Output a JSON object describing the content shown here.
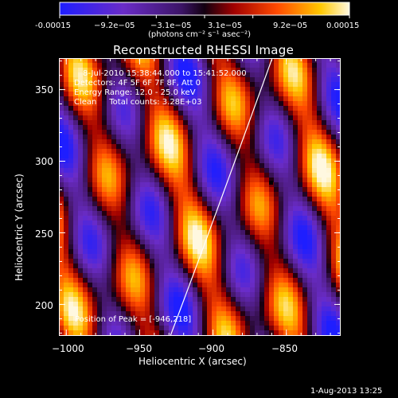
{
  "colorbar": {
    "ticks": [
      "-0.00015",
      "−9.2e−05",
      "−3.1e−05",
      "3.1e−05",
      "9.2e−05",
      "0.00015"
    ],
    "units": "(photons cm⁻² s⁻¹ asec⁻²)",
    "min": -0.00015,
    "max": 0.00015
  },
  "title": "Reconstructed RHESSI Image",
  "annotations": {
    "time_range": "8-Jul-2010 15:38:44.000 to 15:41:52.000",
    "detectors": "Detectors: 4F 5F 6F 7F 8F, Att 0",
    "energy": "Energy Range: 12.0 - 25.0 keV",
    "clean": "Clean     Total counts: 3.28E+03",
    "peak": "Position of Peak = [-946,218]"
  },
  "axes": {
    "xlabel": "Heliocentric X (arcsec)",
    "ylabel": "Heliocentric Y (arcsec)",
    "xlim": [
      -1005,
      -813
    ],
    "ylim": [
      178,
      372
    ],
    "xticks": [
      -1000,
      -950,
      -900,
      -850
    ],
    "yticks": [
      200,
      250,
      300,
      350
    ],
    "xtick_labels": [
      "−1000",
      "−950",
      "−900",
      "−850"
    ],
    "ytick_labels": [
      "200",
      "250",
      "300",
      "350"
    ]
  },
  "timestamp": "1-Aug-2013 13:25",
  "colors": {
    "background": "#000000",
    "text": "#ffffff"
  }
}
